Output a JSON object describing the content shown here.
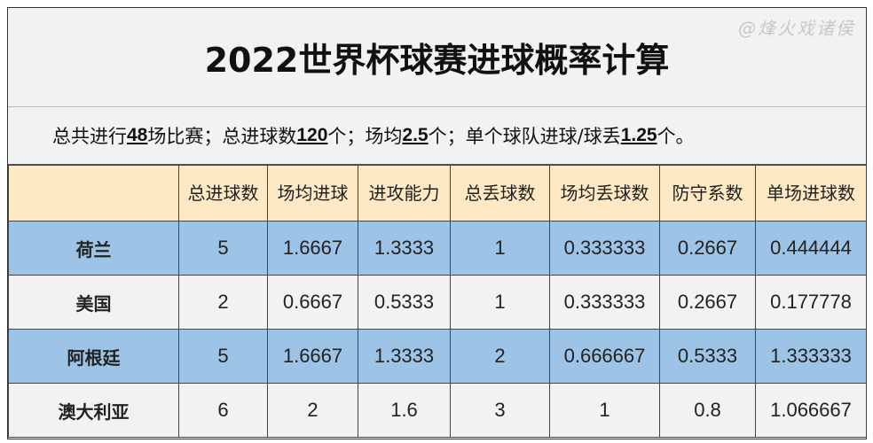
{
  "title": "2022世界杯球赛进球概率计算",
  "summary": {
    "p1": "总共进行",
    "matches": "48",
    "p2": "场比赛；总进球数",
    "goals": "120",
    "p3": "个；场均",
    "avg": "2.5",
    "p4": "个；单个球队进球/球丢",
    "team_avg": "1.25",
    "p5": "个。"
  },
  "columns": [
    "",
    "总进球数",
    "场均进球",
    "进攻能力",
    "总丢球数",
    "场均丢球数",
    "防守系数",
    "单场进球数"
  ],
  "rows": [
    {
      "team": "荷兰",
      "values": [
        "5",
        "1.6667",
        "1.3333",
        "1",
        "0.333333",
        "0.2667",
        "0.444444"
      ],
      "color": "#9dc3e6"
    },
    {
      "team": "美国",
      "values": [
        "2",
        "0.6667",
        "0.5333",
        "1",
        "0.333333",
        "0.2667",
        "0.177778"
      ],
      "color": "#f2f2f2"
    },
    {
      "team": "阿根廷",
      "values": [
        "5",
        "1.6667",
        "1.3333",
        "2",
        "0.666667",
        "0.5333",
        "1.333333"
      ],
      "color": "#9dc3e6"
    },
    {
      "team": "澳大利亚",
      "values": [
        "6",
        "2",
        "1.6",
        "3",
        "1",
        "0.8",
        "1.066667"
      ],
      "color": "#f2f2f2"
    }
  ],
  "watermark": "@烽火戏诸侯"
}
